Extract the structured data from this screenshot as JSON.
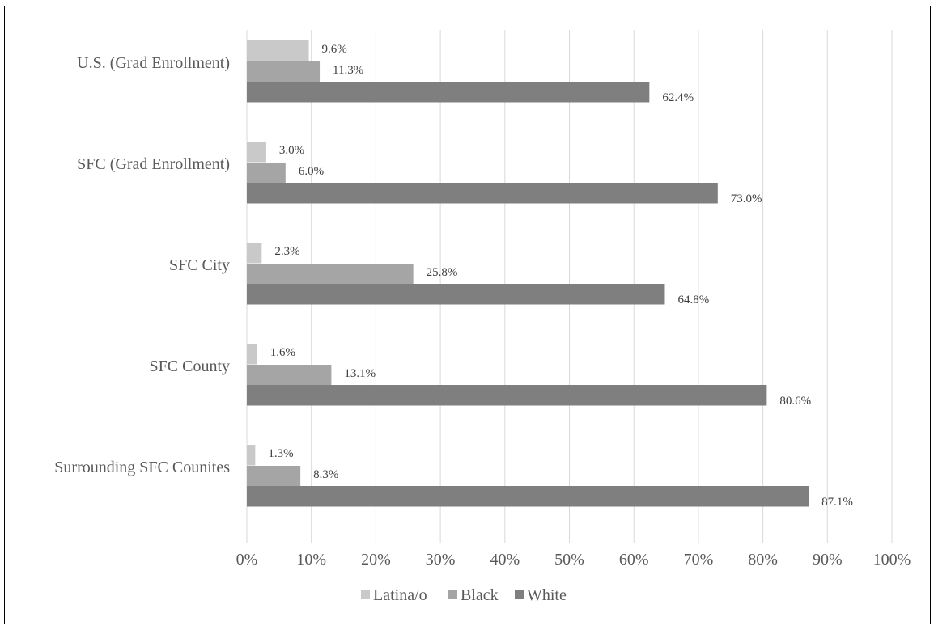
{
  "chart_data": {
    "type": "bar",
    "orientation": "horizontal",
    "categories": [
      "U.S. (Grad Enrollment)",
      "SFC (Grad Enrollment)",
      "SFC City",
      "SFC County",
      "Surrounding SFC Counites"
    ],
    "series": [
      {
        "name": "Latina/o",
        "color": "#c9c9c9",
        "values": [
          9.6,
          3.0,
          2.3,
          1.6,
          1.3
        ],
        "labels": [
          "9.6%",
          "3.0%",
          "2.3%",
          "1.6%",
          "1.3%"
        ]
      },
      {
        "name": "Black",
        "color": "#a5a5a5",
        "values": [
          11.3,
          6.0,
          25.8,
          13.1,
          8.3
        ],
        "labels": [
          "11.3%",
          "6.0%",
          "25.8%",
          "13.1%",
          "8.3%"
        ]
      },
      {
        "name": "White",
        "color": "#7f7f7f",
        "values": [
          62.4,
          73.0,
          64.8,
          80.6,
          87.1
        ],
        "labels": [
          "62.4%",
          "73.0%",
          "64.8%",
          "80.6%",
          "87.1%"
        ]
      }
    ],
    "xlim": [
      0,
      100
    ],
    "xticks": [
      "0%",
      "10%",
      "20%",
      "30%",
      "40%",
      "50%",
      "60%",
      "70%",
      "80%",
      "90%",
      "100%"
    ],
    "grid": "vertical",
    "legend_position": "bottom",
    "title": "",
    "xlabel": "",
    "ylabel": ""
  }
}
